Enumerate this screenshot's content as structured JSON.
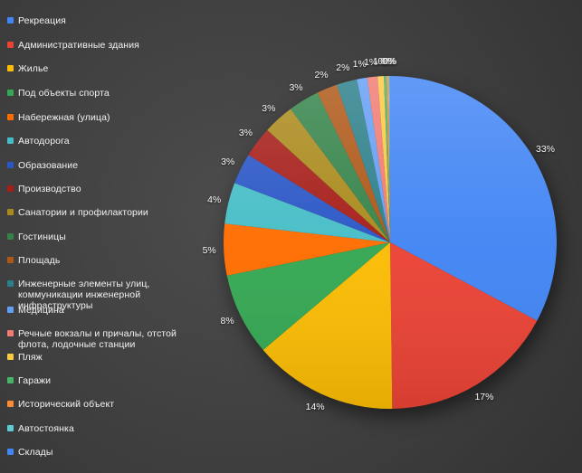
{
  "theme": {
    "background_center": "#4c4c4c",
    "background_mid": "#3f3f3f",
    "background_edge": "#303030",
    "legend_text_color": "#f2f2f2",
    "label_text_color": "#f5f5f5"
  },
  "chart_data": {
    "type": "pie",
    "title": "",
    "legend_position": "left",
    "start_angle_deg": 0,
    "direction": "clockwise",
    "categories": [
      "Рекреация",
      "Административные здания",
      "Жилье",
      "Под объекты спорта",
      "Набережная (улица)",
      "Автодорога",
      "Образование",
      "Производство",
      "Санатории и профилактории",
      "Гостиницы",
      "Площадь",
      "Инженерные элементы улиц, коммуникации инженерной инфраструктуры",
      "Медицина",
      "Речные вокзалы и причалы, отстой флота, лодочные станции",
      "Пляж",
      "Гаражи",
      "Исторический объект",
      "Автостоянка",
      "Склады"
    ],
    "values": [
      33,
      17,
      14,
      8,
      5,
      4,
      3,
      3,
      3,
      3,
      2,
      2,
      1,
      1,
      1,
      0,
      0,
      0,
      0
    ],
    "estimated_percents": [
      32.8,
      17,
      14,
      8,
      5,
      4,
      3,
      3,
      3,
      3,
      2,
      2,
      1,
      1,
      0.6,
      0.25,
      0.2,
      0.1,
      0.05
    ],
    "display_labels": [
      "33%",
      "17%",
      "14%",
      "8%",
      "5%",
      "4%",
      "3%",
      "3%",
      "3%",
      "3%",
      "2%",
      "2%",
      "1%",
      "1%",
      "1%",
      "0%",
      "0%",
      "0%",
      "0%"
    ],
    "colors": [
      "#4285F4",
      "#EA4335",
      "#FBBC04",
      "#34A853",
      "#FF6D01",
      "#46BDC6",
      "#2A56C6",
      "#A61E19",
      "#AA8A1C",
      "#35834A",
      "#AE5717",
      "#2C7F8A",
      "#649EF5",
      "#F07B72",
      "#FBC942",
      "#47B566",
      "#FB8C34",
      "#5ECBD5",
      "#4285F4"
    ]
  }
}
